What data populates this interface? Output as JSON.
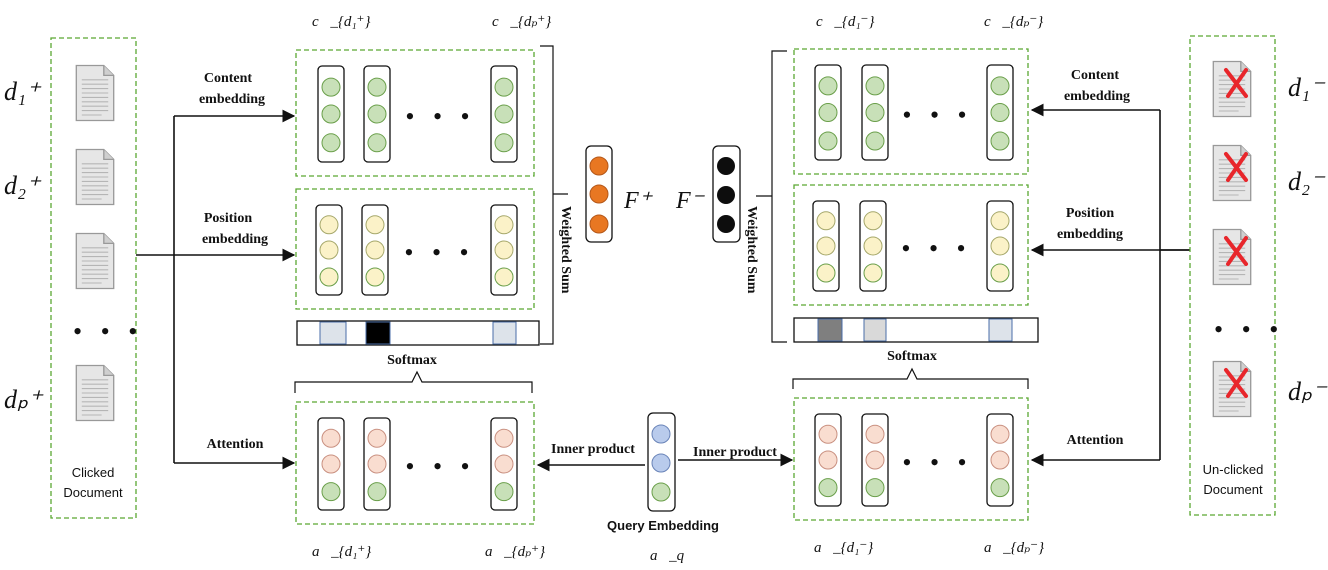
{
  "labels": {
    "content_embedding_line1": "Content",
    "content_embedding_line2": "embedding",
    "position_embedding_line1": "Position",
    "position_embedding_line2": "embedding",
    "attention": "Attention",
    "softmax": "Softmax",
    "weighted_sum": "Weighted Sum",
    "inner_product": "Inner product",
    "query_embedding": "Query Embedding",
    "clicked_line1": "Clicked",
    "clicked_line2": "Document",
    "unclicked_line1": "Un-clicked",
    "unclicked_line2": "Document"
  },
  "math": {
    "f_plus": "F⁺",
    "f_minus": "F⁻",
    "d_pos": [
      "d₁⁺",
      "d₂⁺",
      "dₚ⁺"
    ],
    "d_neg": [
      "d₁⁻",
      "d₂⁻",
      "dₚ⁻"
    ],
    "c_pos": [
      "c⃗_{d₁⁺}",
      "c⃗_{dₚ⁺}"
    ],
    "c_neg": [
      "c⃗_{d₁⁻}",
      "c⃗_{dₚ⁻}"
    ],
    "a_pos": [
      "a⃗_{d₁⁺}",
      "a⃗_{dₚ⁺}"
    ],
    "a_neg": [
      "a⃗_{d₁⁻}",
      "a⃗_{dₚ⁻}"
    ],
    "a_q": "a⃗_q"
  },
  "colors": {
    "content": "#c8e0b8",
    "content_stroke": "#6a9f4a",
    "position": "#fbf2c8",
    "position_stroke": "#a5a76a",
    "attention": "#f9ddd0",
    "attention_stroke": "#c99080",
    "query": "#b9cbec",
    "query_stroke": "#6a84b8",
    "f_plus": "#e87722",
    "f_minus": "#0d0d0d",
    "dash_border": "#5aa832",
    "reject_mark": "#e8262b"
  },
  "ellipsis": "• • •"
}
